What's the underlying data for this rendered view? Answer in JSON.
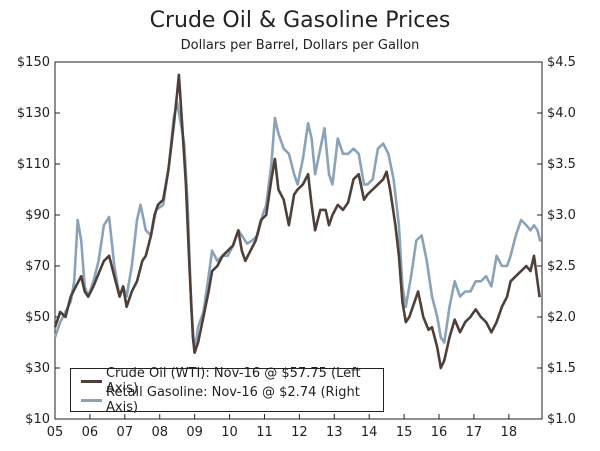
{
  "chart_data": {
    "type": "line",
    "title": "Crude Oil & Gasoline Prices",
    "subtitle": "Dollars per Barrel, Dollars per Gallon",
    "x_ticks": [
      "05",
      "06",
      "07",
      "08",
      "09",
      "10",
      "11",
      "12",
      "13",
      "14",
      "15",
      "16",
      "17",
      "18"
    ],
    "x_tick_years": [
      2005,
      2006,
      2007,
      2008,
      2009,
      2010,
      2011,
      2012,
      2013,
      2014,
      2015,
      2016,
      2017,
      2018
    ],
    "xlim": [
      2005,
      2018.95
    ],
    "y_left": {
      "ticks": [
        "$10",
        "$30",
        "$50",
        "$70",
        "$90",
        "$110",
        "$130",
        "$150"
      ],
      "tick_values": [
        10,
        30,
        50,
        70,
        90,
        110,
        130,
        150
      ],
      "lim": [
        10,
        150
      ]
    },
    "y_right": {
      "ticks": [
        "$1.0",
        "$1.5",
        "$2.0",
        "$2.5",
        "$3.0",
        "$3.5",
        "$4.0",
        "$4.5"
      ],
      "tick_values": [
        1.0,
        1.5,
        2.0,
        2.5,
        3.0,
        3.5,
        4.0,
        4.5
      ],
      "lim": [
        1.0,
        4.5
      ]
    },
    "series": [
      {
        "name": "Crude Oil (WTI)",
        "axis": "left",
        "color": "#4e4038",
        "points": [
          [
            2005.0,
            46
          ],
          [
            2005.15,
            52
          ],
          [
            2005.3,
            50
          ],
          [
            2005.45,
            58
          ],
          [
            2005.6,
            62
          ],
          [
            2005.75,
            66
          ],
          [
            2005.85,
            60
          ],
          [
            2005.95,
            58
          ],
          [
            2006.1,
            62
          ],
          [
            2006.25,
            67
          ],
          [
            2006.4,
            72
          ],
          [
            2006.55,
            74
          ],
          [
            2006.7,
            66
          ],
          [
            2006.85,
            58
          ],
          [
            2006.95,
            62
          ],
          [
            2007.05,
            54
          ],
          [
            2007.2,
            60
          ],
          [
            2007.35,
            64
          ],
          [
            2007.5,
            72
          ],
          [
            2007.6,
            74
          ],
          [
            2007.75,
            82
          ],
          [
            2007.85,
            90
          ],
          [
            2007.95,
            94
          ],
          [
            2008.1,
            96
          ],
          [
            2008.25,
            108
          ],
          [
            2008.4,
            125
          ],
          [
            2008.5,
            138
          ],
          [
            2008.55,
            145
          ],
          [
            2008.65,
            124
          ],
          [
            2008.75,
            102
          ],
          [
            2008.85,
            70
          ],
          [
            2008.95,
            42
          ],
          [
            2009.0,
            36
          ],
          [
            2009.1,
            40
          ],
          [
            2009.25,
            50
          ],
          [
            2009.4,
            60
          ],
          [
            2009.5,
            68
          ],
          [
            2009.65,
            70
          ],
          [
            2009.8,
            74
          ],
          [
            2009.95,
            76
          ],
          [
            2010.1,
            78
          ],
          [
            2010.25,
            84
          ],
          [
            2010.35,
            76
          ],
          [
            2010.45,
            72
          ],
          [
            2010.6,
            76
          ],
          [
            2010.75,
            80
          ],
          [
            2010.9,
            88
          ],
          [
            2011.05,
            90
          ],
          [
            2011.2,
            104
          ],
          [
            2011.3,
            112
          ],
          [
            2011.4,
            100
          ],
          [
            2011.55,
            96
          ],
          [
            2011.7,
            86
          ],
          [
            2011.85,
            98
          ],
          [
            2011.95,
            100
          ],
          [
            2012.1,
            102
          ],
          [
            2012.25,
            106
          ],
          [
            2012.35,
            94
          ],
          [
            2012.45,
            84
          ],
          [
            2012.6,
            92
          ],
          [
            2012.75,
            92
          ],
          [
            2012.85,
            86
          ],
          [
            2012.95,
            90
          ],
          [
            2013.1,
            94
          ],
          [
            2013.25,
            92
          ],
          [
            2013.4,
            95
          ],
          [
            2013.55,
            104
          ],
          [
            2013.7,
            106
          ],
          [
            2013.85,
            96
          ],
          [
            2013.95,
            98
          ],
          [
            2014.1,
            100
          ],
          [
            2014.25,
            102
          ],
          [
            2014.4,
            104
          ],
          [
            2014.5,
            107
          ],
          [
            2014.6,
            100
          ],
          [
            2014.75,
            86
          ],
          [
            2014.85,
            74
          ],
          [
            2014.95,
            56
          ],
          [
            2015.05,
            48
          ],
          [
            2015.15,
            50
          ],
          [
            2015.3,
            56
          ],
          [
            2015.4,
            60
          ],
          [
            2015.55,
            50
          ],
          [
            2015.7,
            45
          ],
          [
            2015.8,
            46
          ],
          [
            2015.95,
            38
          ],
          [
            2016.05,
            30
          ],
          [
            2016.15,
            33
          ],
          [
            2016.3,
            42
          ],
          [
            2016.45,
            49
          ],
          [
            2016.6,
            44
          ],
          [
            2016.75,
            48
          ],
          [
            2016.9,
            50
          ],
          [
            2017.05,
            53
          ],
          [
            2017.2,
            50
          ],
          [
            2017.35,
            48
          ],
          [
            2017.5,
            44
          ],
          [
            2017.65,
            48
          ],
          [
            2017.8,
            54
          ],
          [
            2017.95,
            58
          ],
          [
            2018.05,
            64
          ],
          [
            2018.2,
            66
          ],
          [
            2018.35,
            68
          ],
          [
            2018.5,
            70
          ],
          [
            2018.62,
            68
          ],
          [
            2018.72,
            74
          ],
          [
            2018.8,
            66
          ],
          [
            2018.88,
            57.75
          ]
        ]
      },
      {
        "name": "Retail Gasoline",
        "axis": "right",
        "color": "#8aa3b8",
        "points": [
          [
            2005.0,
            1.8
          ],
          [
            2005.15,
            1.95
          ],
          [
            2005.3,
            2.05
          ],
          [
            2005.45,
            2.15
          ],
          [
            2005.55,
            2.35
          ],
          [
            2005.65,
            2.95
          ],
          [
            2005.75,
            2.75
          ],
          [
            2005.85,
            2.3
          ],
          [
            2005.95,
            2.2
          ],
          [
            2006.1,
            2.35
          ],
          [
            2006.25,
            2.55
          ],
          [
            2006.4,
            2.9
          ],
          [
            2006.55,
            2.98
          ],
          [
            2006.7,
            2.5
          ],
          [
            2006.85,
            2.2
          ],
          [
            2006.95,
            2.3
          ],
          [
            2007.05,
            2.2
          ],
          [
            2007.2,
            2.5
          ],
          [
            2007.35,
            2.95
          ],
          [
            2007.45,
            3.1
          ],
          [
            2007.6,
            2.85
          ],
          [
            2007.75,
            2.8
          ],
          [
            2007.9,
            3.05
          ],
          [
            2008.1,
            3.1
          ],
          [
            2008.25,
            3.45
          ],
          [
            2008.4,
            3.95
          ],
          [
            2008.5,
            4.1
          ],
          [
            2008.6,
            3.9
          ],
          [
            2008.7,
            3.7
          ],
          [
            2008.8,
            3.1
          ],
          [
            2008.9,
            2.1
          ],
          [
            2009.0,
            1.65
          ],
          [
            2009.1,
            1.9
          ],
          [
            2009.25,
            2.05
          ],
          [
            2009.4,
            2.4
          ],
          [
            2009.5,
            2.65
          ],
          [
            2009.65,
            2.55
          ],
          [
            2009.8,
            2.6
          ],
          [
            2009.95,
            2.6
          ],
          [
            2010.1,
            2.7
          ],
          [
            2010.25,
            2.85
          ],
          [
            2010.35,
            2.8
          ],
          [
            2010.5,
            2.72
          ],
          [
            2010.65,
            2.75
          ],
          [
            2010.8,
            2.8
          ],
          [
            2010.95,
            3.0
          ],
          [
            2011.05,
            3.1
          ],
          [
            2011.2,
            3.5
          ],
          [
            2011.3,
            3.95
          ],
          [
            2011.4,
            3.8
          ],
          [
            2011.55,
            3.65
          ],
          [
            2011.7,
            3.6
          ],
          [
            2011.85,
            3.4
          ],
          [
            2011.95,
            3.3
          ],
          [
            2012.1,
            3.55
          ],
          [
            2012.25,
            3.9
          ],
          [
            2012.35,
            3.75
          ],
          [
            2012.45,
            3.4
          ],
          [
            2012.6,
            3.65
          ],
          [
            2012.72,
            3.85
          ],
          [
            2012.85,
            3.4
          ],
          [
            2012.95,
            3.3
          ],
          [
            2013.1,
            3.75
          ],
          [
            2013.25,
            3.6
          ],
          [
            2013.4,
            3.6
          ],
          [
            2013.55,
            3.65
          ],
          [
            2013.7,
            3.6
          ],
          [
            2013.85,
            3.3
          ],
          [
            2013.95,
            3.3
          ],
          [
            2014.1,
            3.35
          ],
          [
            2014.25,
            3.65
          ],
          [
            2014.4,
            3.7
          ],
          [
            2014.55,
            3.6
          ],
          [
            2014.7,
            3.35
          ],
          [
            2014.85,
            2.9
          ],
          [
            2014.95,
            2.3
          ],
          [
            2015.05,
            2.1
          ],
          [
            2015.2,
            2.4
          ],
          [
            2015.35,
            2.75
          ],
          [
            2015.5,
            2.8
          ],
          [
            2015.65,
            2.55
          ],
          [
            2015.8,
            2.2
          ],
          [
            2015.95,
            2.0
          ],
          [
            2016.05,
            1.8
          ],
          [
            2016.15,
            1.75
          ],
          [
            2016.3,
            2.1
          ],
          [
            2016.45,
            2.35
          ],
          [
            2016.6,
            2.2
          ],
          [
            2016.75,
            2.25
          ],
          [
            2016.9,
            2.25
          ],
          [
            2017.05,
            2.35
          ],
          [
            2017.2,
            2.35
          ],
          [
            2017.35,
            2.4
          ],
          [
            2017.5,
            2.3
          ],
          [
            2017.65,
            2.6
          ],
          [
            2017.8,
            2.5
          ],
          [
            2017.95,
            2.5
          ],
          [
            2018.05,
            2.6
          ],
          [
            2018.2,
            2.8
          ],
          [
            2018.35,
            2.95
          ],
          [
            2018.5,
            2.9
          ],
          [
            2018.62,
            2.85
          ],
          [
            2018.72,
            2.9
          ],
          [
            2018.82,
            2.85
          ],
          [
            2018.9,
            2.74
          ]
        ]
      }
    ],
    "legend": [
      {
        "label": "Crude Oil (WTI): Nov-16 @ $57.75 (Left Axis)",
        "color": "#4e4038"
      },
      {
        "label": "Retail Gasoline: Nov-16 @ $2.74 (Right Axis)",
        "color": "#8aa3b8"
      }
    ]
  }
}
